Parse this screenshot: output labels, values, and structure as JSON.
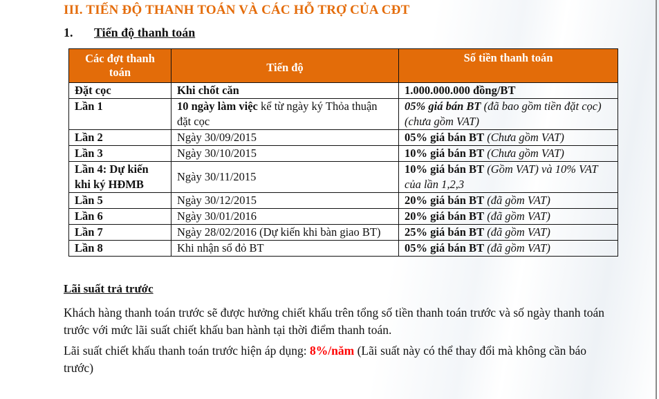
{
  "section_title": "III.  TIẾN ĐỘ THANH TOÁN VÀ CÁC HỖ TRỢ CỦA CĐT",
  "subsection": {
    "number": "1.",
    "title": "Tiến độ thanh toán"
  },
  "table": {
    "header_color": "#e36c09",
    "headers": [
      "Các đợt thanh toán",
      "Tiến độ",
      "Số tiền thanh toán"
    ],
    "rows": [
      {
        "label": "Đặt cọc",
        "progress": [
          {
            "t": "Khi chốt căn",
            "s": "b"
          }
        ],
        "amount": [
          {
            "t": "1.000.000.000 đồng/BT",
            "s": "b"
          }
        ]
      },
      {
        "label": "Lần 1",
        "progress": [
          {
            "t": "10 ngày làm việc",
            "s": "b"
          },
          {
            "t": " kể từ ngày ký Thỏa thuận đặt cọc",
            "s": ""
          }
        ],
        "amount": [
          {
            "t": "05% giá bán BT",
            "s": "bi"
          },
          {
            "t": " (đã bao gồm tiền đặt cọc) (chưa gồm VAT)",
            "s": "i"
          }
        ]
      },
      {
        "label": "Lần 2",
        "progress": [
          {
            "t": "Ngày 30/09/2015",
            "s": ""
          }
        ],
        "amount": [
          {
            "t": "05% giá bán BT",
            "s": "b"
          },
          {
            "t": " (Chưa gồm VAT)",
            "s": "i"
          }
        ]
      },
      {
        "label": "Lần 3",
        "progress": [
          {
            "t": "Ngày 30/10/2015",
            "s": ""
          }
        ],
        "amount": [
          {
            "t": "10% giá bán BT",
            "s": "b"
          },
          {
            "t": " (Chưa gồm VAT)",
            "s": "i"
          }
        ]
      },
      {
        "label": "Lần 4: Dự kiến khi ký HĐMB",
        "progress": [
          {
            "t": "Ngày 30/11/2015",
            "s": ""
          }
        ],
        "amount": [
          {
            "t": "10% giá bán BT",
            "s": "b"
          },
          {
            "t": " (Gồm VAT) và 10% VAT của lần 1,2,3",
            "s": "i"
          }
        ],
        "progress_middle": true
      },
      {
        "label": "Lần 5",
        "progress": [
          {
            "t": "Ngày 30/12/2015",
            "s": ""
          }
        ],
        "amount": [
          {
            "t": "20% giá bán BT",
            "s": "b"
          },
          {
            "t": " (đã gồm VAT)",
            "s": "i"
          }
        ]
      },
      {
        "label": "Lần 6",
        "progress": [
          {
            "t": "Ngày 30/01/2016",
            "s": ""
          }
        ],
        "amount": [
          {
            "t": "20% giá bán BT",
            "s": "b"
          },
          {
            "t": " (đã gồm VAT)",
            "s": "i"
          }
        ]
      },
      {
        "label": "Lần 7",
        "progress": [
          {
            "t": "Ngày 28/02/2016 (Dự kiến khi bàn giao BT)",
            "s": ""
          }
        ],
        "amount": [
          {
            "t": "25% giá bán BT",
            "s": "b"
          },
          {
            "t": " (đã gồm VAT)",
            "s": "i"
          }
        ]
      },
      {
        "label": "Lần 8",
        "progress": [
          {
            "t": "Khi nhận sổ đỏ BT",
            "s": ""
          }
        ],
        "amount": [
          {
            "t": "05% giá bán BT",
            "s": "b"
          },
          {
            "t": " (đã gồm VAT)",
            "s": "i"
          }
        ]
      }
    ]
  },
  "prepay": {
    "title": "Lãi suất trả trước",
    "paragraph1": "Khách hàng thanh toán trước sẽ được hưởng chiết khấu trên tổng số tiền thanh toán trước và số ngày thanh toán trước với mức lãi suất chiết khấu ban hành tại thời điểm thanh toán.",
    "paragraph2_prefix": "Lãi suất chiết khấu thanh toán trước hiện áp dụng: ",
    "rate": "8%/năm",
    "rate_color": "#ff0000",
    "paragraph2_suffix": " (Lãi suất này có thể thay đổi mà không cần báo trước)"
  }
}
